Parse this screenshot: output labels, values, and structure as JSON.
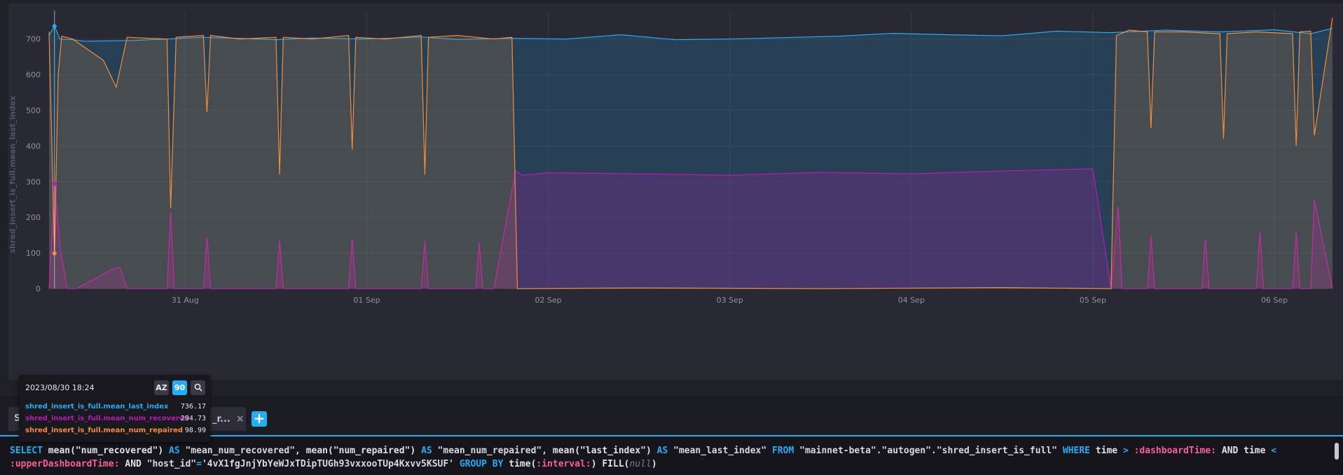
{
  "chart_data": {
    "type": "area",
    "ylabel": "shred_insert_is_full.mean_last_index",
    "xlabel": "",
    "x_ticks": [
      "31 Aug",
      "01 Sep",
      "02 Sep",
      "03 Sep",
      "04 Sep",
      "05 Sep",
      "06 Sep"
    ],
    "x_tick_days": [
      0.5,
      1.5,
      2.5,
      3.5,
      4.5,
      5.5,
      6.5
    ],
    "xlim_days": [
      -0.25,
      6.82
    ],
    "y_ticks": [
      0,
      100,
      200,
      300,
      400,
      500,
      600,
      700
    ],
    "ylim": [
      0,
      780
    ],
    "grid": true,
    "series": [
      {
        "name": "shred_insert_is_full.mean_last_index",
        "color": "#22adf6",
        "x_days": [
          -0.25,
          -0.22,
          -0.19,
          -0.12,
          -0.05,
          0.2,
          0.4,
          0.6,
          0.8,
          1.0,
          1.2,
          1.5,
          1.8,
          2.0,
          2.3,
          2.6,
          2.9,
          3.2,
          3.5,
          3.8,
          4.1,
          4.4,
          4.7,
          5.0,
          5.3,
          5.6,
          5.9,
          6.2,
          6.5,
          6.7,
          6.82
        ],
        "values": [
          710,
          736,
          700,
          698,
          694,
          696,
          700,
          705,
          702,
          698,
          703,
          700,
          706,
          699,
          702,
          700,
          712,
          698,
          700,
          704,
          708,
          716,
          712,
          709,
          722,
          718,
          725,
          720,
          726,
          715,
          730
        ]
      },
      {
        "name": "shred_insert_is_full.mean_num_recovered",
        "color": "#ba18ba",
        "x_days": [
          -0.25,
          -0.22,
          -0.19,
          -0.15,
          -0.1,
          0.1,
          0.14,
          0.18,
          0.4,
          0.42,
          0.44,
          0.6,
          0.62,
          0.64,
          1.0,
          1.02,
          1.04,
          1.4,
          1.42,
          1.44,
          1.8,
          1.82,
          1.84,
          2.1,
          2.12,
          2.14,
          2.2,
          2.32,
          2.36,
          2.5,
          3.0,
          3.5,
          4.0,
          4.5,
          5.0,
          5.5,
          5.6,
          5.64,
          5.66,
          5.8,
          5.82,
          5.84,
          6.1,
          6.12,
          6.14,
          6.4,
          6.42,
          6.44,
          6.6,
          6.62,
          6.64,
          6.7,
          6.72,
          6.82
        ],
        "values": [
          0,
          294.73,
          120,
          0,
          0,
          55,
          60,
          0,
          0,
          215,
          0,
          0,
          145,
          0,
          0,
          135,
          0,
          0,
          140,
          0,
          0,
          135,
          0,
          0,
          130,
          0,
          0,
          330,
          318,
          325,
          322,
          318,
          326,
          322,
          330,
          336,
          0,
          230,
          0,
          0,
          150,
          0,
          0,
          140,
          0,
          0,
          160,
          0,
          0,
          160,
          0,
          0,
          250,
          0
        ]
      },
      {
        "name": "shred_insert_is_full.mean_num_repaired",
        "color": "#f48d38",
        "x_days": [
          -0.25,
          -0.22,
          -0.2,
          -0.18,
          -0.12,
          0.05,
          0.12,
          0.18,
          0.4,
          0.42,
          0.45,
          0.6,
          0.62,
          0.64,
          0.8,
          1.0,
          1.02,
          1.04,
          1.2,
          1.4,
          1.42,
          1.44,
          1.6,
          1.8,
          1.82,
          1.84,
          2.0,
          2.2,
          2.3,
          2.33,
          3.0,
          4.0,
          5.0,
          5.6,
          5.63,
          5.7,
          5.8,
          5.82,
          5.84,
          6.0,
          6.2,
          6.22,
          6.24,
          6.4,
          6.6,
          6.62,
          6.64,
          6.7,
          6.72,
          6.82
        ],
        "values": [
          720,
          98.99,
          600,
          708,
          700,
          640,
          565,
          705,
          700,
          225,
          705,
          710,
          495,
          710,
          700,
          705,
          320,
          705,
          700,
          710,
          390,
          705,
          700,
          710,
          320,
          705,
          710,
          700,
          705,
          0,
          2,
          0,
          3,
          0,
          710,
          725,
          720,
          450,
          720,
          720,
          715,
          420,
          715,
          720,
          715,
          400,
          720,
          722,
          430,
          760
        ]
      }
    ]
  },
  "tooltip": {
    "time": "2023/08/30 18:24",
    "sort_alpha_label": "AZ",
    "sort_numeric_label": "90",
    "search_icon": "search-icon",
    "rows": [
      {
        "name": "shred_insert_is_full.mean_last_index",
        "value": "736.17",
        "color": "#22adf6"
      },
      {
        "name": "shred_insert_is_full.mean_num_recovered",
        "value": "294.73",
        "color": "#ba18ba"
      },
      {
        "name": "shred_insert_is_full.mean_num_repaired",
        "value": "98.99",
        "color": "#f48d38"
      }
    ]
  },
  "query_tabs": {
    "first_tab_label": "S",
    "second_tab_label": "_r...",
    "close_label": "×",
    "add_label": "+"
  },
  "query": {
    "select": "SELECT",
    "fn1": "mean(\"num_recovered\")",
    "as1": "AS",
    "alias1": "\"mean_num_recovered\",",
    "fn2": "mean(\"num_repaired\")",
    "as2": "AS",
    "alias2": "\"mean_num_repaired\",",
    "fn3": "mean(\"last_index\")",
    "as3": "AS",
    "alias3": "\"mean_last_index\"",
    "from": "FROM",
    "source": "\"mainnet-beta\".\"autogen\".\"shred_insert_is_full\"",
    "where": "WHERE",
    "time1": "time",
    "gt": ">",
    "lower": ":dashboardTime:",
    "and1": "AND",
    "time2": "time",
    "lt": "<",
    "upper": ":upperDashboardTime:",
    "and2": "AND",
    "host_field": "\"host_id\"",
    "eq": "=",
    "host_value": "'4vX1fgJnjYbYeWJxTDipTUGh93vxxooTUp4Kxvv5KSUF'",
    "groupby": "GROUP BY",
    "time_fn_open": "time(",
    "interval": ":interval:",
    "time_fn_close": ")",
    "fill_open": "FILL(",
    "fill_null": "null",
    "fill_close": ")"
  },
  "colors": {
    "accent": "#22adf6",
    "last_index": "#22adf6",
    "num_recovered": "#ba18ba",
    "num_repaired": "#f48d38"
  }
}
